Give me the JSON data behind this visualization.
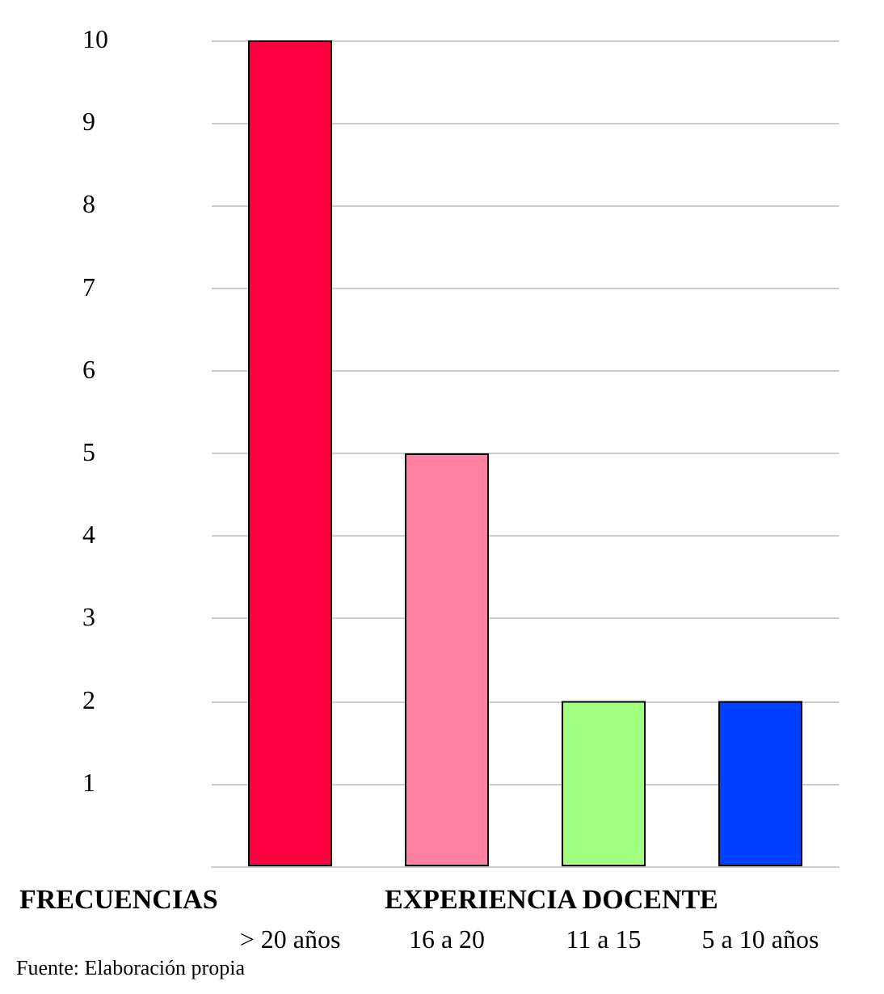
{
  "chart_data": {
    "type": "bar",
    "xlabel": "EXPERIENCIA DOCENTE",
    "ylabel": "FRECUENCIAS",
    "categories": [
      "> 20 años",
      "16 a 20",
      "11 a 15",
      "5 a 10 años"
    ],
    "values": [
      10,
      5,
      2,
      2
    ],
    "colors": [
      "#ff0040",
      "#ff80a0",
      "#a0ff80",
      "#0040ff"
    ],
    "ylim": [
      0,
      10
    ],
    "yticks": [
      1,
      2,
      3,
      4,
      5,
      6,
      7,
      8,
      9,
      10
    ],
    "grid": "y",
    "annotations": [
      "Fuente: Elaboración propia"
    ]
  }
}
